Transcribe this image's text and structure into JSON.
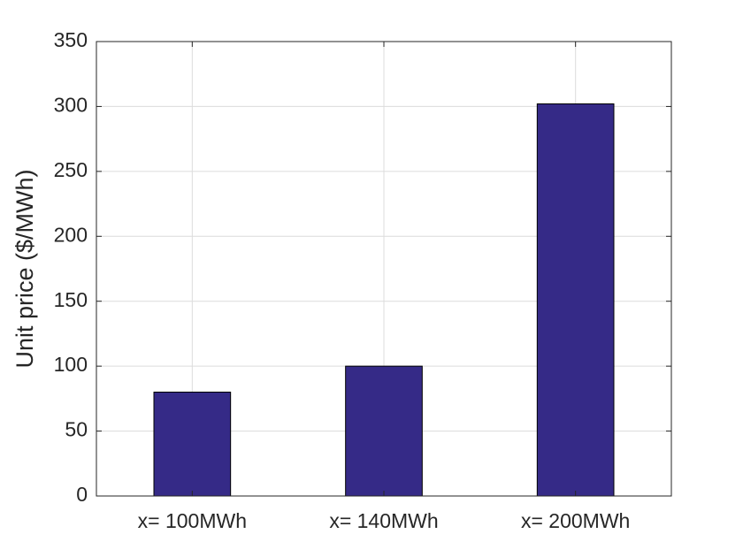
{
  "chart_data": {
    "type": "bar",
    "y_label": "Unit price ($/MWh)",
    "categories": [
      "x= 100MWh",
      "x= 140MWh",
      "x= 200MWh"
    ],
    "values": [
      80,
      100,
      302
    ],
    "color": "#352a87",
    "ylim": [
      0,
      350
    ],
    "yticks": [
      0,
      50,
      100,
      150,
      200,
      250,
      300,
      350
    ],
    "grid": true
  }
}
